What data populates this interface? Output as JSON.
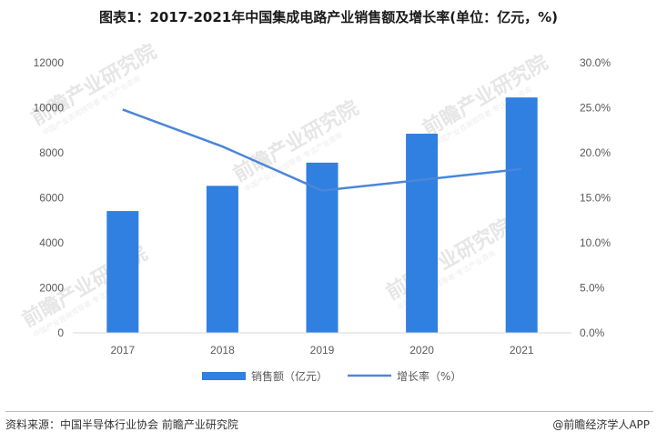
{
  "title": "图表1：2017-2021年中国集成电路产业销售额及增长率(单位：亿元，%)",
  "chart_data": {
    "type": "bar",
    "categories": [
      "2017",
      "2018",
      "2019",
      "2020",
      "2021"
    ],
    "series": [
      {
        "name": "销售额（亿元）",
        "type": "bar",
        "axis": "left",
        "values": [
          5411,
          6532,
          7562,
          8848,
          10458
        ],
        "color": "#2f80e0"
      },
      {
        "name": "增长率（%）",
        "type": "line",
        "axis": "right",
        "values": [
          24.8,
          20.7,
          15.8,
          17.0,
          18.2
        ],
        "color": "#4a86d9"
      }
    ],
    "y_left": {
      "lim": [
        0,
        12000
      ],
      "ticks": [
        "0",
        "2000",
        "4000",
        "6000",
        "8000",
        "10000",
        "12000"
      ]
    },
    "y_right": {
      "lim": [
        0,
        30
      ],
      "ticks": [
        "0.0%",
        "5.0%",
        "10.0%",
        "15.0%",
        "20.0%",
        "25.0%",
        "30.0%"
      ]
    },
    "grid": false,
    "legend_position": "bottom"
  },
  "watermark": {
    "text": "前瞻产业研究院",
    "sub": "中国产业咨询领导者·专注产业咨询"
  },
  "footer": {
    "source": "资料来源：中国半导体行业协会 前瞻产业研究院",
    "brand": "@前瞻经济学人APP"
  }
}
